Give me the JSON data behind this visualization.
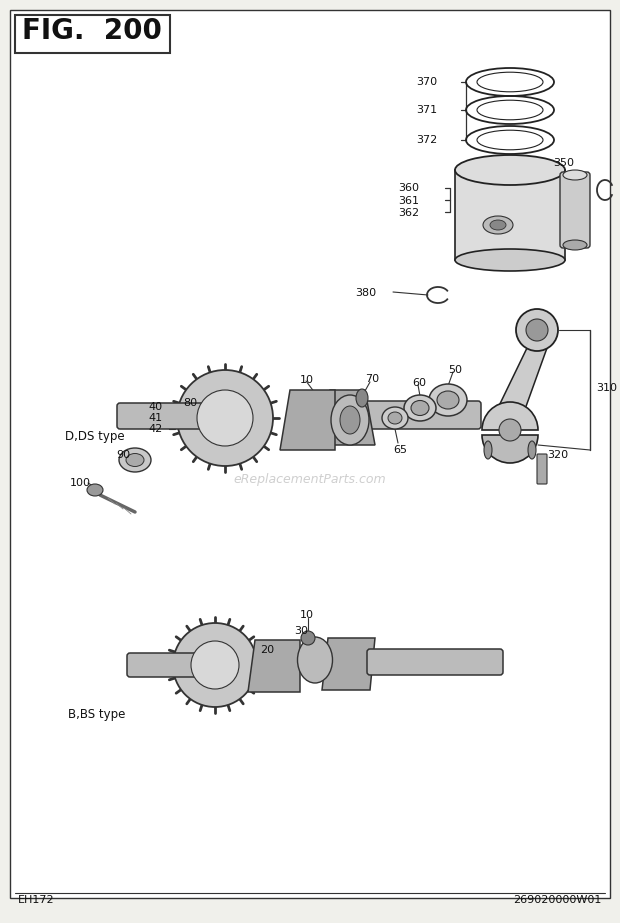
{
  "title": "FIG.  200",
  "bg_color": "#f0f0eb",
  "footer_left": "EH172",
  "footer_right": "269020000W01",
  "watermark": "eReplacementParts.com",
  "fig_width": 6.2,
  "fig_height": 9.23
}
